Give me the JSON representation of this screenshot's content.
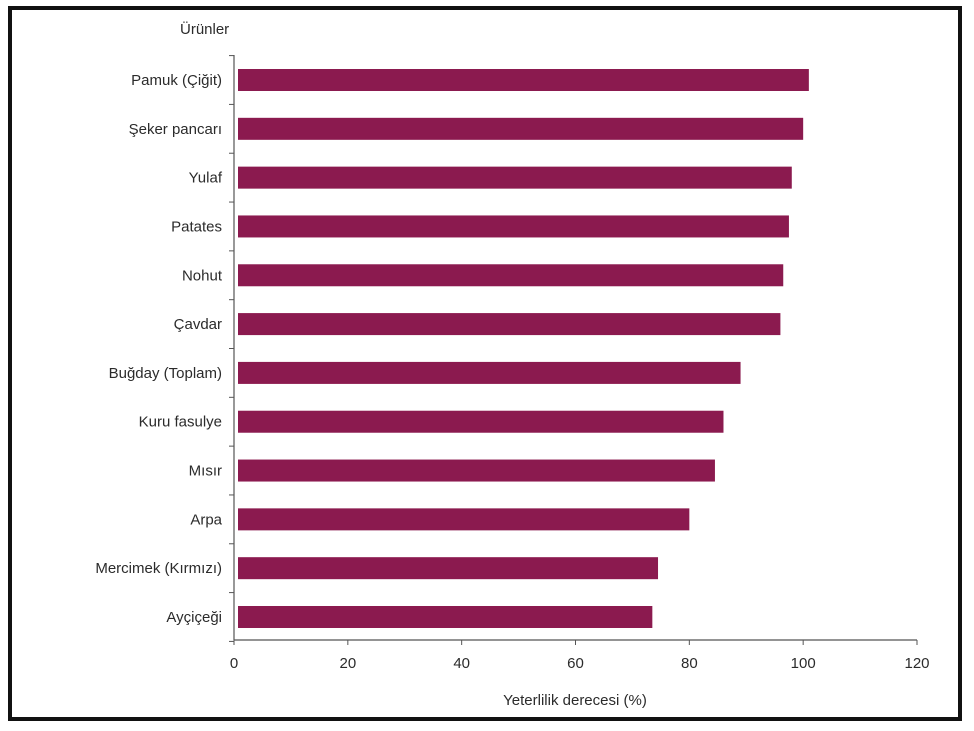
{
  "chart_data": {
    "type": "bar",
    "orientation": "horizontal",
    "title": "",
    "ylabel": "Ürünler",
    "xlabel": "Yeterlilik  derecesi (%)",
    "categories": [
      "Pamuk (Çiğit)",
      "Şeker pancarı",
      "Yulaf",
      "Patates",
      "Nohut",
      "Çavdar",
      "Buğday (Toplam)",
      "Kuru fasulye",
      "Mısır",
      "Arpa",
      "Mercimek  (Kırmızı)",
      "Ayçiçeği"
    ],
    "values": [
      101,
      100,
      98,
      97.5,
      96.5,
      96,
      89,
      86,
      84.5,
      80,
      74.5,
      73.5
    ],
    "xlim": [
      0,
      120
    ],
    "xticks": [
      0,
      20,
      40,
      60,
      80,
      100,
      120
    ],
    "tick_labels": [
      "0",
      "20",
      "40",
      "60",
      "80",
      "100",
      "120"
    ],
    "grid": false,
    "legend": "none",
    "bar_color": "#8b1a4f"
  }
}
